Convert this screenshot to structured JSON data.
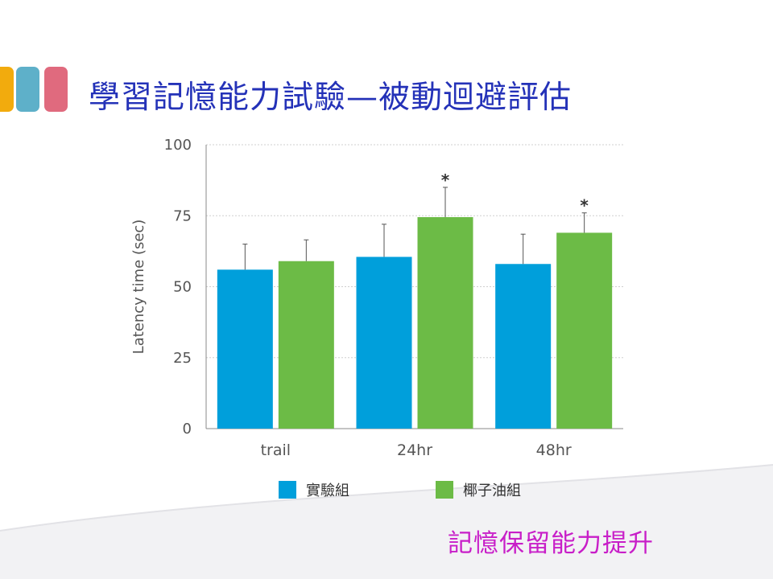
{
  "slide": {
    "title": "學習記憶能力試驗—被動迴避評估",
    "caption": "記憶保留能力提升",
    "decor_colors": [
      "#f2ab0d",
      "#5eb0c9",
      "#e06a7e"
    ]
  },
  "chart_data": {
    "type": "bar",
    "title": "",
    "xlabel": "",
    "ylabel": "Latency time (sec)",
    "ylim": [
      0,
      100
    ],
    "yticks": [
      "0",
      "25",
      "50",
      "75",
      "100"
    ],
    "grid": true,
    "legend_position": "bottom",
    "categories": [
      "trail",
      "24hr",
      "48hr"
    ],
    "series": [
      {
        "name": "實驗組",
        "color": "#009fdb",
        "values": [
          56,
          60.5,
          58
        ],
        "error": [
          9,
          11.5,
          10.5
        ],
        "significance": [
          "",
          "",
          ""
        ]
      },
      {
        "name": "椰子油組",
        "color": "#6cbb46",
        "values": [
          59,
          74.5,
          69
        ],
        "error": [
          7.5,
          10.5,
          7
        ],
        "significance": [
          "",
          "*",
          "*"
        ]
      }
    ]
  }
}
